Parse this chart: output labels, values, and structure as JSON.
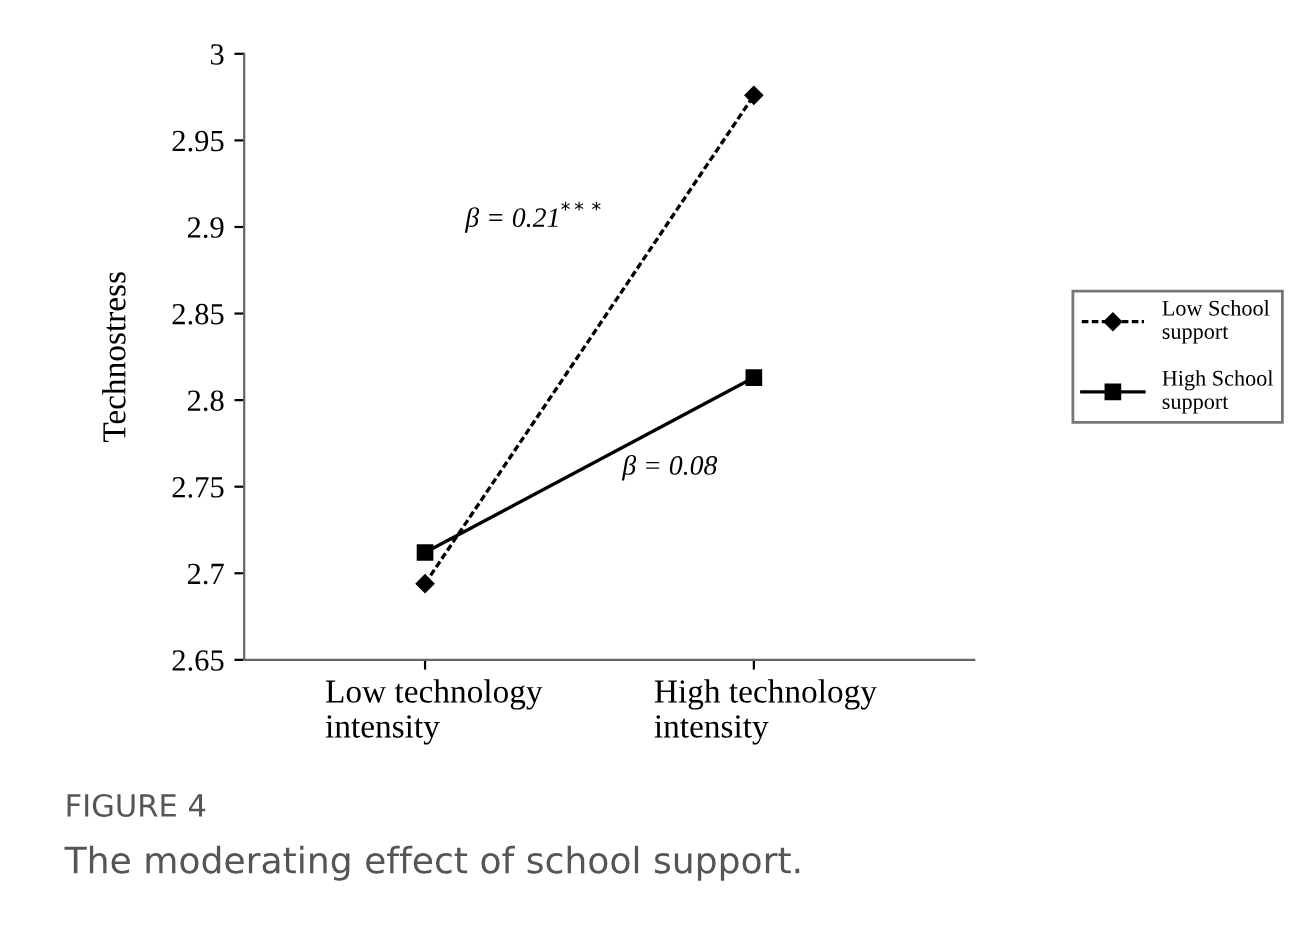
{
  "chart_data": {
    "type": "line",
    "ylabel": "Technostress",
    "categories": [
      "Low technology\nintensity",
      "High technology\nintensity"
    ],
    "series": [
      {
        "name": "Low School\nsupport",
        "color": "#000000",
        "values": [
          2.694,
          2.976
        ],
        "marker": "diamond",
        "line_style": "dashed"
      },
      {
        "name": "High School\nsupport",
        "color": "#000000",
        "values": [
          2.712,
          2.813
        ],
        "marker": "square",
        "line_style": "solid"
      }
    ],
    "ylim": [
      2.65,
      3
    ],
    "yticks": [
      2.65,
      2.7,
      2.75,
      2.8,
      2.85,
      2.9,
      2.95,
      3
    ],
    "grid": false,
    "legend": "right",
    "annotations": [
      "β = 0.21$^{***}$",
      "β = 0.08",
      "FIGURE 4",
      "The moderating effect of school support."
    ]
  }
}
